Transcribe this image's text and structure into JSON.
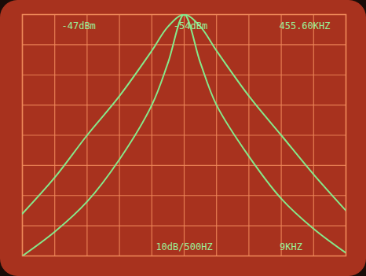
{
  "chart_data": {
    "type": "line",
    "annotations": [
      "-47dBm",
      "-54dBm",
      "455.60KHZ",
      "10dB/500HZ",
      "9KHZ"
    ],
    "x": [
      -2500,
      -2000,
      -1500,
      -1000,
      -500,
      -250,
      0,
      250,
      500,
      1000,
      1500,
      2000,
      2500
    ],
    "series": [
      {
        "color": "#86e88a",
        "values": [
          -66,
          -54,
          -40,
          -27,
          -12,
          -4,
          0,
          -4,
          -12,
          -27,
          -40,
          -53,
          -65
        ]
      },
      {
        "color": "#86e88a",
        "values": [
          -80,
          -72,
          -62,
          -48,
          -30,
          -16,
          0,
          -16,
          -30,
          -47,
          -61,
          -71,
          -79
        ]
      }
    ],
    "xlim": [
      -2500,
      2500
    ],
    "xticks": [
      -2500,
      -2000,
      -1500,
      -1000,
      -500,
      0,
      500,
      1000,
      1500,
      2000,
      2500
    ],
    "ylim": [
      -80,
      0
    ],
    "yticks": [
      -80,
      -70,
      -60,
      -50,
      -40,
      -30,
      -20,
      -10,
      0
    ],
    "grid": true,
    "tick_labels": false
  }
}
